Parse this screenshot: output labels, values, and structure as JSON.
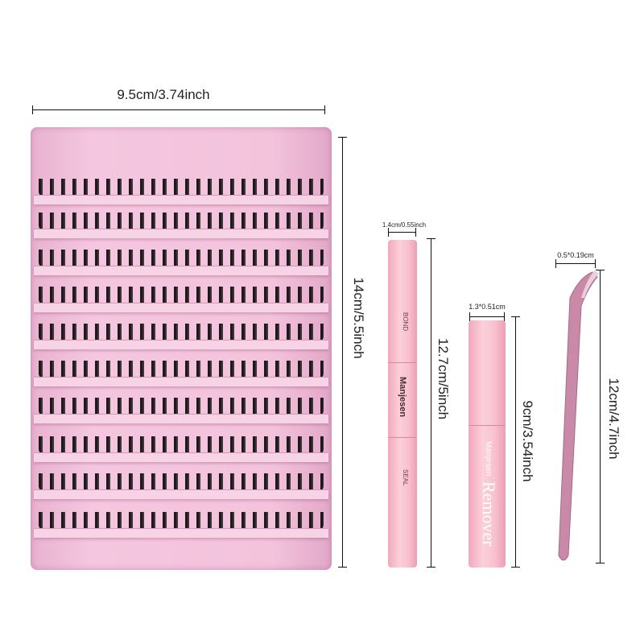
{
  "dimensions": {
    "tray_width": "9.5cm/3.74inch",
    "tray_height": "14cm/5.5inch",
    "bond_width": "1.4cm/0.55inch",
    "bond_height": "12.7cm/5inch",
    "remover_width": "1.3*0.51cm",
    "remover_height": "9cm/3.54inch",
    "tweezers_width": "0.5*0.19cm",
    "tweezers_height": "12cm/4.7inch"
  },
  "products": {
    "brand": "Manjesen",
    "bond_label": "BOND",
    "seal_label": "SEAL",
    "remover_label": "Remover"
  },
  "colors": {
    "tray": "#f3c3dc",
    "tube": "#f8c2cf",
    "tweezers": "#c98aa8"
  }
}
